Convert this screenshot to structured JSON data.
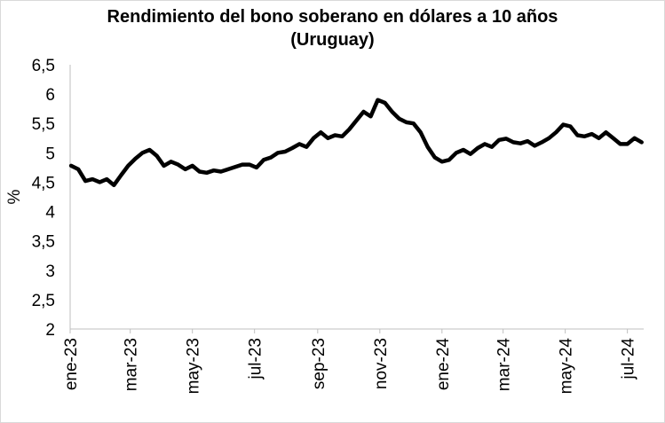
{
  "chart_data": {
    "type": "line",
    "title": "Rendimiento del bono soberano en dólares a 10 años",
    "subtitle": "(Uruguay)",
    "xlabel": "",
    "ylabel": "%",
    "ylim": [
      2,
      6.5
    ],
    "yticks": [
      "2",
      "2,5",
      "3",
      "3,5",
      "4",
      "4,5",
      "5",
      "5,5",
      "6",
      "6,5"
    ],
    "yticks_values": [
      2,
      2.5,
      3,
      3.5,
      4,
      4.5,
      5,
      5.5,
      6,
      6.5
    ],
    "xticks": [
      "ene-23",
      "mar-23",
      "may-23",
      "jul-23",
      "sep-23",
      "nov-23",
      "ene-24",
      "mar-24",
      "may-24",
      "jul-24"
    ],
    "grid": false,
    "legend": "none",
    "line_color": "#000000",
    "series": [
      {
        "x": [
          "2023-01-02",
          "2023-01-09",
          "2023-01-16",
          "2023-01-23",
          "2023-01-30",
          "2023-02-06",
          "2023-02-13",
          "2023-02-20",
          "2023-02-27",
          "2023-03-06",
          "2023-03-13",
          "2023-03-20",
          "2023-03-27",
          "2023-04-03",
          "2023-04-10",
          "2023-04-17",
          "2023-04-24",
          "2023-05-01",
          "2023-05-08",
          "2023-05-15",
          "2023-05-22",
          "2023-05-29",
          "2023-06-05",
          "2023-06-12",
          "2023-06-19",
          "2023-06-26",
          "2023-07-03",
          "2023-07-10",
          "2023-07-17",
          "2023-07-24",
          "2023-07-31",
          "2023-08-07",
          "2023-08-14",
          "2023-08-21",
          "2023-08-28",
          "2023-09-04",
          "2023-09-11",
          "2023-09-18",
          "2023-09-25",
          "2023-10-02",
          "2023-10-09",
          "2023-10-16",
          "2023-10-23",
          "2023-10-30",
          "2023-11-06",
          "2023-11-13",
          "2023-11-20",
          "2023-11-27",
          "2023-12-04",
          "2023-12-11",
          "2023-12-18",
          "2023-12-25",
          "2024-01-01",
          "2024-01-08",
          "2024-01-15",
          "2024-01-22",
          "2024-01-29",
          "2024-02-05",
          "2024-02-12",
          "2024-02-19",
          "2024-02-26",
          "2024-03-04",
          "2024-03-11",
          "2024-03-18",
          "2024-03-25",
          "2024-04-01",
          "2024-04-08",
          "2024-04-15",
          "2024-04-22",
          "2024-04-29",
          "2024-05-06",
          "2024-05-13",
          "2024-05-20",
          "2024-05-27",
          "2024-06-03",
          "2024-06-10",
          "2024-06-17",
          "2024-06-24",
          "2024-07-01",
          "2024-07-08",
          "2024-07-15"
        ],
        "values": [
          4.78,
          4.72,
          4.52,
          4.55,
          4.5,
          4.55,
          4.45,
          4.62,
          4.78,
          4.9,
          5.0,
          5.05,
          4.95,
          4.78,
          4.85,
          4.8,
          4.72,
          4.78,
          4.68,
          4.66,
          4.7,
          4.68,
          4.72,
          4.76,
          4.8,
          4.8,
          4.75,
          4.88,
          4.92,
          5.0,
          5.02,
          5.08,
          5.15,
          5.1,
          5.25,
          5.35,
          5.25,
          5.3,
          5.28,
          5.4,
          5.55,
          5.7,
          5.62,
          5.9,
          5.85,
          5.7,
          5.58,
          5.52,
          5.5,
          5.35,
          5.1,
          4.92,
          4.85,
          4.88,
          5.0,
          5.05,
          4.98,
          5.08,
          5.15,
          5.1,
          5.22,
          5.24,
          5.18,
          5.16,
          5.2,
          5.12,
          5.18,
          5.25,
          5.35,
          5.48,
          5.45,
          5.3,
          5.28,
          5.32,
          5.25,
          5.35,
          5.25,
          5.15,
          5.15,
          5.25,
          5.18
        ]
      }
    ]
  }
}
